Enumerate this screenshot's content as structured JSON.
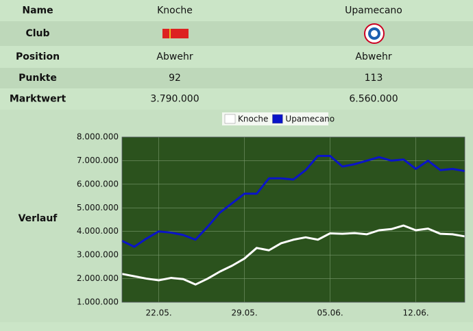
{
  "table": {
    "rows": [
      {
        "label": "Name",
        "values": [
          "Knoche",
          "Upamecano"
        ]
      },
      {
        "label": "Club"
      },
      {
        "label": "Position",
        "values": [
          "Abwehr",
          "Abwehr"
        ]
      },
      {
        "label": "Punkte",
        "values": [
          "92",
          "113"
        ]
      },
      {
        "label": "Marktwert",
        "values": [
          "3.790.000",
          "6.560.000"
        ]
      },
      {
        "label": "Verlauf"
      }
    ]
  },
  "chart_data": {
    "type": "line",
    "categories": [
      null,
      null,
      null,
      "22.05.",
      null,
      null,
      null,
      null,
      null,
      null,
      "29.05.",
      null,
      null,
      null,
      null,
      null,
      null,
      "05.06.",
      null,
      null,
      null,
      null,
      null,
      null,
      "12.06.",
      null,
      null,
      null,
      null
    ],
    "series": [
      {
        "name": "Knoche",
        "color": "#ffffff",
        "values": [
          2200000,
          2100000,
          2000000,
          1930000,
          2030000,
          1980000,
          1750000,
          2000000,
          2300000,
          2550000,
          2850000,
          3300000,
          3200000,
          3500000,
          3650000,
          3750000,
          3650000,
          3920000,
          3900000,
          3930000,
          3880000,
          4050000,
          4100000,
          4250000,
          4050000,
          4120000,
          3900000,
          3880000,
          3790000
        ]
      },
      {
        "name": "Upamecano",
        "color": "#0a14c8",
        "values": [
          3600000,
          3350000,
          3700000,
          4000000,
          3950000,
          3850000,
          3650000,
          4200000,
          4800000,
          5200000,
          5600000,
          5600000,
          6250000,
          6250000,
          6200000,
          6600000,
          7200000,
          7200000,
          6750000,
          6850000,
          7000000,
          7150000,
          7000000,
          7050000,
          6650000,
          7000000,
          6600000,
          6650000,
          6560000
        ]
      }
    ],
    "ylim": [
      1000000,
      8000000
    ],
    "yticks": [
      {
        "value": 1000000,
        "label": "1.000.000"
      },
      {
        "value": 2000000,
        "label": "2.000.000"
      },
      {
        "value": 3000000,
        "label": "3.000.000"
      },
      {
        "value": 4000000,
        "label": "4.000.000"
      },
      {
        "value": 5000000,
        "label": "5.000.000"
      },
      {
        "value": 6000000,
        "label": "6.000.000"
      },
      {
        "value": 7000000,
        "label": "7.000.000"
      },
      {
        "value": 8000000,
        "label": "8.000.000"
      }
    ],
    "grid": true,
    "background": "#2b521d",
    "legend": "top"
  }
}
